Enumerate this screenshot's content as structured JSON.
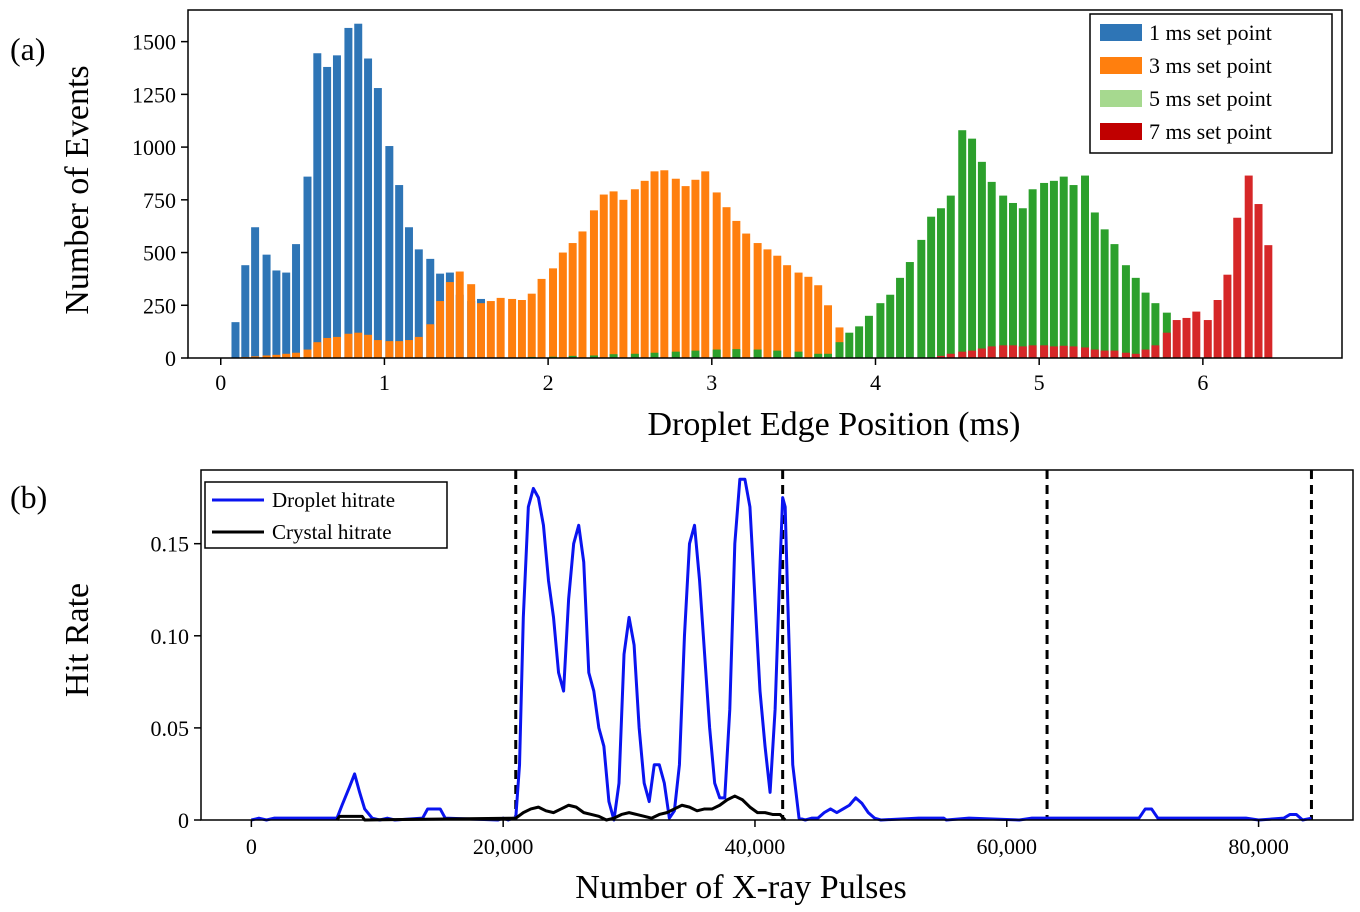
{
  "figure": {
    "panel_a_label": "(a)",
    "panel_b_label": "(b)",
    "colors": {
      "s1": "#2e75b6",
      "s3": "#ff7f0e",
      "s5": "#2ca02c",
      "s5_legend": "#a6d98f",
      "s7": "#d62728",
      "s7_legend": "#c00000",
      "droplet": "#0a14f0",
      "crystal": "#000000"
    }
  },
  "chart_data": [
    {
      "type": "bar",
      "panel": "(a)",
      "xlabel": "Droplet Edge Position (ms)",
      "ylabel": "Number of Events",
      "xlim": [
        -0.2,
        6.85
      ],
      "ylim": [
        0,
        1650
      ],
      "xticks": [
        0,
        1,
        2,
        3,
        4,
        5,
        6
      ],
      "yticks": [
        0,
        250,
        500,
        750,
        1000,
        1250,
        1500
      ],
      "legend_position": "top-right",
      "bin_width": 0.0625,
      "series": [
        {
          "name": "1 ms set point",
          "x": [
            0.09,
            0.15,
            0.21,
            0.28,
            0.34,
            0.4,
            0.46,
            0.53,
            0.59,
            0.65,
            0.71,
            0.78,
            0.84,
            0.9,
            0.96,
            1.03,
            1.09,
            1.15,
            1.21,
            1.28,
            1.34,
            1.4,
            1.46,
            1.53,
            1.59
          ],
          "values": [
            170,
            440,
            620,
            490,
            415,
            405,
            540,
            860,
            1445,
            1380,
            1435,
            1565,
            1585,
            1420,
            1280,
            1005,
            820,
            620,
            515,
            470,
            400,
            405,
            300,
            270,
            280
          ]
        },
        {
          "name": "3 ms set point",
          "x": [
            0.09,
            0.15,
            0.21,
            0.28,
            0.34,
            0.4,
            0.46,
            0.53,
            0.59,
            0.65,
            0.71,
            0.78,
            0.84,
            0.9,
            0.96,
            1.03,
            1.09,
            1.15,
            1.21,
            1.28,
            1.34,
            1.4,
            1.46,
            1.53,
            1.59,
            1.65,
            1.71,
            1.78,
            1.84,
            1.9,
            1.96,
            2.03,
            2.09,
            2.15,
            2.21,
            2.28,
            2.34,
            2.4,
            2.46,
            2.53,
            2.59,
            2.65,
            2.71,
            2.78,
            2.84,
            2.9,
            2.96,
            3.03,
            3.09,
            3.15,
            3.21,
            3.28,
            3.34,
            3.4,
            3.46,
            3.53,
            3.59,
            3.65,
            3.71,
            3.78
          ],
          "values": [
            2,
            5,
            8,
            12,
            15,
            20,
            25,
            40,
            75,
            95,
            100,
            115,
            120,
            110,
            85,
            80,
            80,
            85,
            100,
            160,
            270,
            360,
            410,
            350,
            260,
            270,
            285,
            280,
            275,
            305,
            375,
            425,
            500,
            545,
            600,
            700,
            775,
            790,
            750,
            800,
            840,
            885,
            890,
            850,
            815,
            845,
            885,
            785,
            715,
            650,
            590,
            545,
            515,
            485,
            440,
            405,
            385,
            345,
            250,
            145
          ]
        },
        {
          "name": "5 ms set point",
          "x": [
            1.9,
            2.03,
            2.15,
            2.28,
            2.4,
            2.53,
            2.65,
            2.78,
            2.9,
            3.03,
            3.15,
            3.28,
            3.4,
            3.53,
            3.65,
            3.71,
            3.78,
            3.84,
            3.9,
            3.96,
            4.03,
            4.09,
            4.15,
            4.21,
            4.28,
            4.34,
            4.4,
            4.46,
            4.53,
            4.59,
            4.65,
            4.71,
            4.78,
            4.84,
            4.9,
            4.96,
            5.03,
            5.09,
            5.15,
            5.21,
            5.28,
            5.34,
            5.4,
            5.46,
            5.53,
            5.59,
            5.65,
            5.71,
            5.78
          ],
          "values": [
            5,
            6,
            10,
            12,
            18,
            20,
            25,
            30,
            35,
            40,
            42,
            40,
            35,
            30,
            20,
            20,
            75,
            120,
            150,
            200,
            260,
            300,
            380,
            455,
            560,
            670,
            710,
            770,
            1080,
            1040,
            930,
            835,
            770,
            735,
            710,
            800,
            830,
            840,
            860,
            820,
            865,
            690,
            610,
            540,
            440,
            380,
            310,
            260,
            215
          ]
        },
        {
          "name": "7 ms set point",
          "x": [
            4.4,
            4.46,
            4.53,
            4.59,
            4.65,
            4.71,
            4.78,
            4.84,
            4.9,
            4.96,
            5.03,
            5.09,
            5.15,
            5.21,
            5.28,
            5.34,
            5.4,
            5.46,
            5.53,
            5.59,
            5.65,
            5.71,
            5.78,
            5.84,
            5.9,
            5.96,
            6.03,
            6.09,
            6.15,
            6.21,
            6.28,
            6.34,
            6.4
          ],
          "values": [
            10,
            20,
            30,
            35,
            45,
            55,
            60,
            60,
            55,
            60,
            60,
            55,
            58,
            55,
            50,
            40,
            35,
            35,
            25,
            20,
            40,
            60,
            120,
            180,
            190,
            220,
            180,
            275,
            395,
            665,
            865,
            730,
            535
          ]
        }
      ]
    },
    {
      "type": "line",
      "panel": "(b)",
      "xlabel": "Number of X-ray Pulses",
      "ylabel": "Hit Rate",
      "xlim": [
        -4000,
        87500
      ],
      "ylim": [
        0,
        0.19
      ],
      "xticks": [
        0,
        20000,
        40000,
        60000,
        80000
      ],
      "xtick_labels": [
        "0",
        "20,000",
        "40,000",
        "60,000",
        "80,000"
      ],
      "yticks": [
        0,
        0.05,
        0.1,
        0.15
      ],
      "ytick_labels": [
        "0",
        "0.05",
        "0.10",
        "0.15"
      ],
      "legend_position": "top-left",
      "vlines": [
        21000,
        42200,
        63200,
        84200
      ],
      "series": [
        {
          "name": "Droplet hitrate",
          "x": [
            0,
            600,
            1200,
            1800,
            6800,
            7200,
            7800,
            8200,
            8600,
            9000,
            9600,
            10200,
            10800,
            11400,
            13600,
            14000,
            15000,
            15400,
            19600,
            20000,
            20400,
            20800,
            21000,
            21300,
            21600,
            22000,
            22400,
            22800,
            23200,
            23600,
            24000,
            24400,
            24800,
            25200,
            25600,
            26000,
            26400,
            26800,
            27200,
            27600,
            28000,
            28400,
            28800,
            29200,
            29600,
            30000,
            30400,
            30800,
            31200,
            31600,
            32000,
            32400,
            32800,
            33200,
            33600,
            34000,
            34400,
            34800,
            35200,
            35600,
            36000,
            36400,
            36800,
            37200,
            37600,
            38000,
            38400,
            38800,
            39200,
            39600,
            40000,
            40400,
            40800,
            41200,
            41600,
            42000,
            42200,
            42400,
            42600,
            43000,
            43500,
            44000,
            44500,
            45000,
            45500,
            46000,
            46500,
            47000,
            47500,
            48000,
            48500,
            49000,
            49500,
            50000,
            53000,
            55000,
            55200,
            57000,
            61000,
            62000,
            70500,
            71000,
            71500,
            72000,
            79000,
            80000,
            82000,
            82500,
            83000,
            83500,
            84200
          ],
          "values": [
            0,
            0.001,
            0,
            0.001,
            0.001,
            0.008,
            0.018,
            0.025,
            0.015,
            0.006,
            0.001,
            0,
            0.001,
            0,
            0.001,
            0.006,
            0.006,
            0.001,
            0,
            0.001,
            0,
            0.001,
            0.001,
            0.03,
            0.11,
            0.17,
            0.18,
            0.175,
            0.16,
            0.13,
            0.11,
            0.08,
            0.07,
            0.12,
            0.15,
            0.16,
            0.14,
            0.08,
            0.07,
            0.05,
            0.04,
            0.01,
            0,
            0.02,
            0.09,
            0.11,
            0.095,
            0.05,
            0.02,
            0.01,
            0.03,
            0.03,
            0.02,
            0.001,
            0.005,
            0.03,
            0.1,
            0.15,
            0.16,
            0.13,
            0.09,
            0.05,
            0.02,
            0.012,
            0.012,
            0.06,
            0.15,
            0.185,
            0.185,
            0.17,
            0.12,
            0.07,
            0.04,
            0.015,
            0.06,
            0.14,
            0.175,
            0.17,
            0.12,
            0.03,
            0.001,
            0,
            0.001,
            0.001,
            0.004,
            0.006,
            0.004,
            0.006,
            0.008,
            0.012,
            0.009,
            0.004,
            0.001,
            0,
            0.001,
            0.001,
            0,
            0.001,
            0,
            0.001,
            0.001,
            0.006,
            0.006,
            0.001,
            0.001,
            0,
            0.001,
            0.003,
            0.003,
            0,
            0.001
          ]
        },
        {
          "name": "Crystal hitrate",
          "x": [
            6800,
            7000,
            8800,
            9000,
            21000,
            21600,
            22200,
            22800,
            23400,
            24000,
            24600,
            25200,
            25800,
            26400,
            27000,
            27600,
            28200,
            28800,
            29400,
            30000,
            30600,
            31200,
            31800,
            32400,
            33000,
            33600,
            34200,
            34800,
            35400,
            36000,
            36600,
            37200,
            37800,
            38400,
            39000,
            39600,
            40200,
            40800,
            41400,
            42000,
            42400
          ],
          "values": [
            0,
            0.002,
            0.002,
            0,
            0.001,
            0.004,
            0.006,
            0.007,
            0.005,
            0.004,
            0.006,
            0.008,
            0.007,
            0.004,
            0.003,
            0.002,
            0,
            0.001,
            0.003,
            0.004,
            0.003,
            0.002,
            0.001,
            0.003,
            0.004,
            0.006,
            0.008,
            0.007,
            0.005,
            0.006,
            0.006,
            0.008,
            0.011,
            0.013,
            0.011,
            0.007,
            0.004,
            0.004,
            0.003,
            0.003,
            0
          ]
        }
      ]
    }
  ]
}
